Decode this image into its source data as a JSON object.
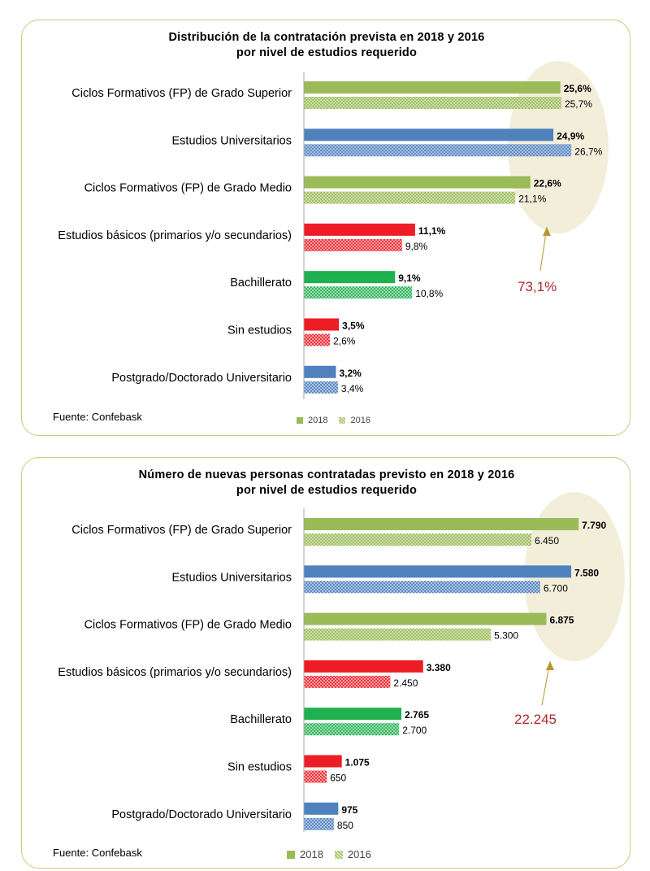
{
  "charts": [
    {
      "title_line1": "Distribución de la contratación prevista en 2018 y 2016",
      "title_line2": "por nivel de estudios requerido",
      "source": "Fuente: Confebask",
      "legend": [
        "2018",
        "2016"
      ],
      "highlight_total": "73,1%"
    },
    {
      "title_line1": "Número de nuevas personas contratadas previsto en 2018 y 2016",
      "title_line2": "por nivel de estudios requerido",
      "source": "Fuente: Confebask",
      "legend": [
        "2018",
        "2016"
      ],
      "highlight_total": "22.245"
    }
  ],
  "chart_data": [
    {
      "type": "bar",
      "orientation": "horizontal",
      "title": "Distribución de la contratación prevista en 2018 y 2016 por nivel de estudios requerido",
      "categories": [
        "Ciclos Formativos (FP) de Grado Superior",
        "Estudios Universitarios",
        "Ciclos Formativos (FP) de Grado Medio",
        "Estudios básicos (primarios y/o secundarios)",
        "Bachillerato",
        "Sin estudios",
        "Postgrado/Doctorado Universitario"
      ],
      "series": [
        {
          "name": "2018",
          "values": [
            25.6,
            24.9,
            22.6,
            11.1,
            9.1,
            3.5,
            3.2
          ],
          "labels": [
            "25,6%",
            "24,9%",
            "22,6%",
            "11,1%",
            "9,1%",
            "3,5%",
            "3,2%"
          ]
        },
        {
          "name": "2016",
          "values": [
            25.7,
            26.7,
            21.1,
            9.8,
            10.8,
            2.6,
            3.4
          ],
          "labels": [
            "25,7%",
            "26,7%",
            "21,1%",
            "9,8%",
            "10,8%",
            "2,6%",
            "3,4%"
          ]
        }
      ],
      "xlim": [
        0,
        30
      ],
      "colors": [
        "#9bbb59",
        "#4f81bd",
        "#9bbb59",
        "#ee1c25",
        "#1fb050",
        "#ee1c25",
        "#4f81bd"
      ],
      "legend_position": "bottom",
      "annotation": "73,1%"
    },
    {
      "type": "bar",
      "orientation": "horizontal",
      "title": "Número de nuevas personas contratadas previsto en 2018 y 2016 por nivel de estudios requerido",
      "categories": [
        "Ciclos Formativos (FP) de Grado Superior",
        "Estudios Universitarios",
        "Ciclos Formativos (FP) de Grado Medio",
        "Estudios básicos (primarios y/o secundarios)",
        "Bachillerato",
        "Sin estudios",
        "Postgrado/Doctorado Universitario"
      ],
      "series": [
        {
          "name": "2018",
          "values": [
            7790,
            7580,
            6875,
            3380,
            2765,
            1075,
            975
          ],
          "labels": [
            "7.790",
            "7.580",
            "6.875",
            "3.380",
            "2.765",
            "1.075",
            "975"
          ]
        },
        {
          "name": "2016",
          "values": [
            6450,
            6700,
            5300,
            2450,
            2700,
            650,
            850
          ],
          "labels": [
            "6.450",
            "6.700",
            "5.300",
            "2.450",
            "2.700",
            "650",
            "850"
          ]
        }
      ],
      "xlim": [
        0,
        8500
      ],
      "colors": [
        "#9bbb59",
        "#4f81bd",
        "#9bbb59",
        "#ee1c25",
        "#1fb050",
        "#ee1c25",
        "#4f81bd"
      ],
      "legend_position": "bottom",
      "annotation": "22.245"
    }
  ]
}
